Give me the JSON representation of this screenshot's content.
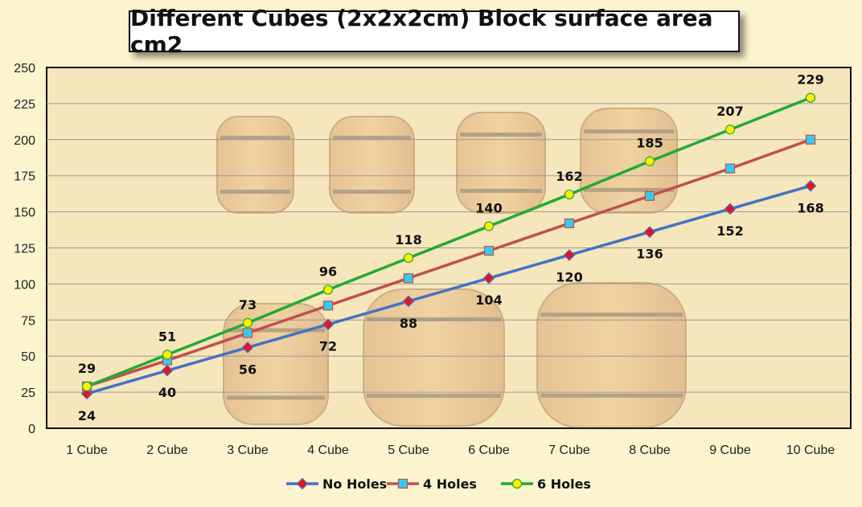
{
  "chart_data": {
    "type": "line",
    "title": "Different Cubes (2x2x2cm) Block surface area cm2",
    "categories": [
      "1 Cube",
      "2 Cube",
      "3 Cube",
      "4 Cube",
      "5 Cube",
      "6 Cube",
      "7 Cube",
      "8 Cube",
      "9 Cube",
      "10 Cube"
    ],
    "ylim": [
      0,
      250
    ],
    "yticks": [
      0,
      25,
      50,
      75,
      100,
      125,
      150,
      175,
      200,
      225,
      250
    ],
    "grid": true,
    "legend_position": "bottom",
    "series": [
      {
        "name": "No Holes",
        "values": [
          24,
          40,
          56,
          72,
          88,
          104,
          120,
          136,
          152,
          168
        ],
        "color": "#4472c4",
        "marker": "diamond",
        "marker_color": "#e8141c",
        "labels": true,
        "label_position": "below"
      },
      {
        "name": "4 Holes",
        "values": [
          29,
          47,
          66,
          85,
          104,
          123,
          142,
          161,
          180,
          200
        ],
        "color": "#c0504d",
        "marker": "square",
        "marker_color": "#33ccee",
        "labels": false
      },
      {
        "name": "6 Holes",
        "values": [
          29,
          51,
          73,
          96,
          118,
          140,
          162,
          185,
          207,
          229
        ],
        "color": "#22aa33",
        "marker": "circle",
        "marker_color": "#ffee00",
        "labels": true,
        "label_position": "above"
      }
    ]
  }
}
